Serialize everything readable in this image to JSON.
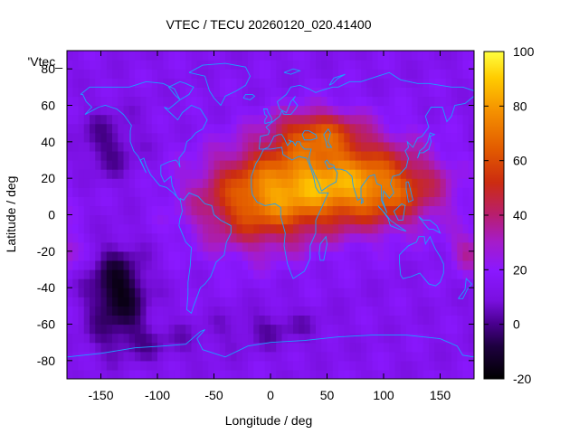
{
  "chart_data": {
    "type": "heatmap",
    "title": "VTEC / TECU 20260120_020.41400",
    "xlabel": "Longitude / deg",
    "ylabel": "Latitude / deg",
    "legend_label": "'Vtec_",
    "xlim": [
      -180,
      180
    ],
    "ylim": [
      -90,
      90
    ],
    "x_ticks": [
      -150,
      -100,
      -50,
      0,
      50,
      100,
      150
    ],
    "y_ticks": [
      -80,
      -60,
      -40,
      -20,
      0,
      20,
      40,
      60,
      80
    ],
    "colorbar": {
      "range": [
        -20,
        100
      ],
      "ticks": [
        -20,
        0,
        20,
        40,
        60,
        80,
        100
      ],
      "palette": [
        "#000000",
        "#3a0070",
        "#8a10ff",
        "#b020a0",
        "#d23010",
        "#f07a00",
        "#ffd000",
        "#ffff40"
      ]
    },
    "grid": false,
    "overlay": "coastlines",
    "overlay_color": "#1aa0ff",
    "field_features": [
      {
        "feature": "maximum",
        "lon": 60,
        "lat": 18,
        "value": 80
      },
      {
        "feature": "crest",
        "lon": 30,
        "lat": 45,
        "value": 55
      },
      {
        "feature": "minimum",
        "lon": -135,
        "lat": -42,
        "value": -15
      },
      {
        "feature": "minimum",
        "lon": -145,
        "lat": 40,
        "value": 0
      }
    ]
  }
}
